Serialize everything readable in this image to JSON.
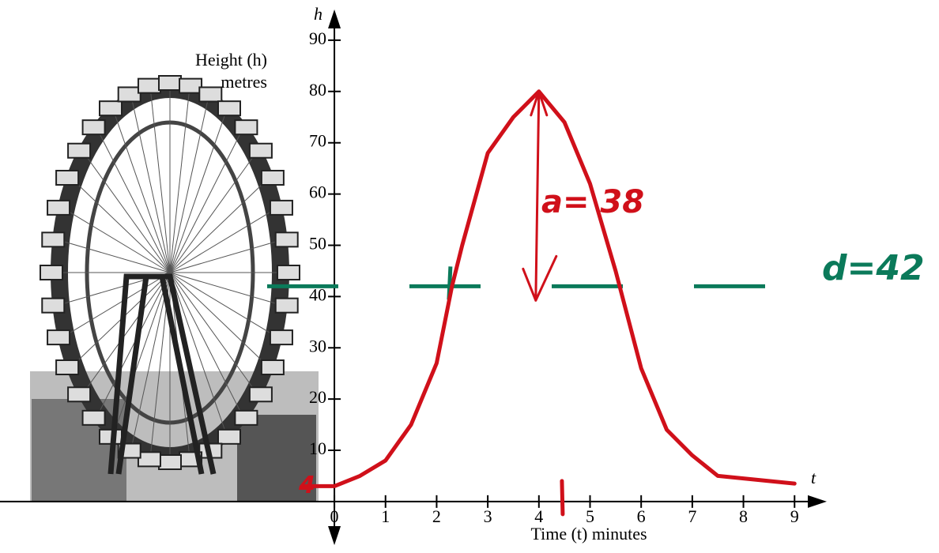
{
  "chart_data": {
    "type": "line",
    "y_axis_symbol": "h",
    "x_axis_symbol": "t",
    "y_label_lines": [
      "Height (h)",
      "metres"
    ],
    "x_label": "Time (t) minutes",
    "x": [
      -0.6,
      0,
      0.5,
      1,
      1.5,
      2,
      2.3,
      2.5,
      3,
      3.5,
      4,
      4.5,
      5,
      5.5,
      6,
      6.5,
      7,
      7.5,
      8,
      8.5,
      9
    ],
    "series": [
      {
        "color": "#d0101a",
        "values": [
          3,
          3,
          5,
          8,
          15,
          27,
          42,
          50,
          68,
          75,
          80,
          74,
          62,
          45,
          26,
          14,
          9,
          5,
          4.5,
          4,
          3.5
        ]
      }
    ],
    "xlim": [
      -6.54,
      9.63
    ],
    "ylim": [
      -8.5,
      96
    ],
    "xticks": [
      0,
      1,
      2,
      3,
      4,
      5,
      6,
      7,
      8,
      9
    ],
    "yticks": [
      10,
      20,
      30,
      40,
      50,
      60,
      70,
      80,
      90
    ],
    "midline": 42,
    "midline_color": "#0b7a5a",
    "midline_tick_x": 2.27,
    "x_marker": 4.45,
    "annotations": {
      "amplitude": "a= 38",
      "midline": "d=42",
      "start": "4"
    }
  }
}
